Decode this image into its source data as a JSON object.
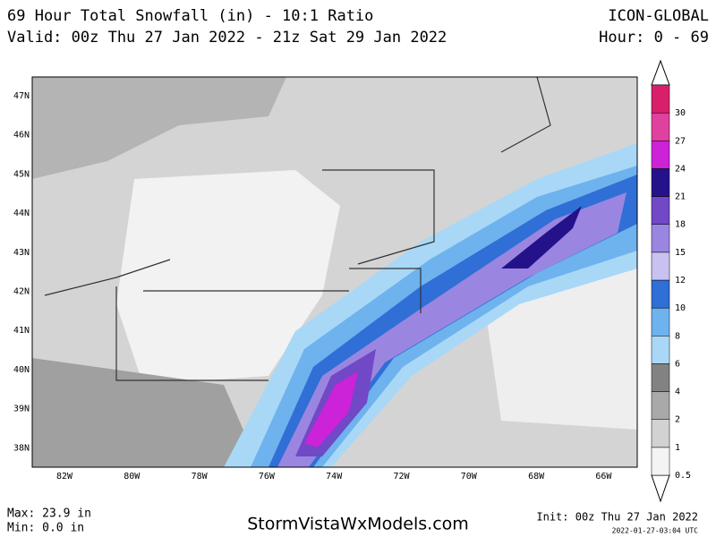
{
  "header": {
    "title": "69 Hour Total Snowfall (in) - 10:1 Ratio",
    "valid": "Valid: 00z Thu 27 Jan 2022 - 21z Sat 29 Jan 2022",
    "model": "ICON-GLOBAL",
    "hours": "Hour: 0 - 69"
  },
  "map": {
    "lat_labels": [
      "47N",
      "46N",
      "45N",
      "44N",
      "43N",
      "42N",
      "41N",
      "40N",
      "39N",
      "38N"
    ],
    "lon_labels": [
      "82W",
      "80W",
      "78W",
      "76W",
      "74W",
      "72W",
      "70W",
      "68W",
      "66W"
    ]
  },
  "legend": {
    "levels": [
      {
        "label": "0.5",
        "color": "#f4f4f4"
      },
      {
        "label": "1",
        "color": "#d2d2d2"
      },
      {
        "label": "2",
        "color": "#a9a9a9"
      },
      {
        "label": "4",
        "color": "#828282"
      },
      {
        "label": "6",
        "color": "#a8d8f6"
      },
      {
        "label": "8",
        "color": "#6eb2ee"
      },
      {
        "label": "10",
        "color": "#2f6fd6"
      },
      {
        "label": "12",
        "color": "#c9c1f0"
      },
      {
        "label": "15",
        "color": "#9a86e0"
      },
      {
        "label": "18",
        "color": "#7148c6"
      },
      {
        "label": "21",
        "color": "#24128a"
      },
      {
        "label": "24",
        "color": "#cc22d8"
      },
      {
        "label": "27",
        "color": "#e0409e"
      },
      {
        "label": "30",
        "color": "#d8206a"
      }
    ]
  },
  "footer": {
    "max": "Max: 23.9 in",
    "min": "Min: 0.0 in",
    "site": "StormVistaWxModels.com",
    "init": "Init: 00z Thu 27 Jan 2022",
    "timestamp": "2022-01-27-03:04 UTC"
  }
}
